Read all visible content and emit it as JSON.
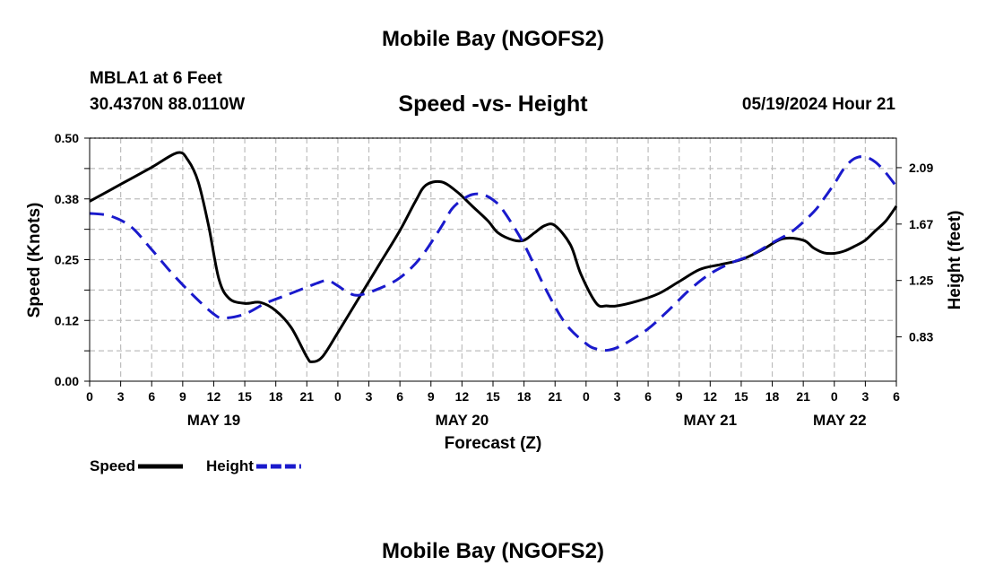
{
  "chart_data": {
    "type": "line",
    "title": "Mobile Bay (NGOFS2)",
    "station": "MBLA1 at 6 Feet",
    "location": "30.4370N  88.0110W",
    "subtitle": "Speed -vs- Height",
    "timestamp": "05/19/2024 Hour 21",
    "xlabel": "Forecast (Z)",
    "ylabel_left": "Speed (Knots)",
    "ylabel_right": "Height (feet)",
    "xlim": [
      0,
      78
    ],
    "ylim_left": [
      0,
      0.5
    ],
    "ylim_right": [
      0.5,
      2.31
    ],
    "x_tick_labels": [
      "0",
      "3",
      "6",
      "9",
      "12",
      "15",
      "18",
      "21",
      "0",
      "3",
      "6",
      "9",
      "12",
      "15",
      "18",
      "21",
      "0",
      "3",
      "6",
      "9",
      "12",
      "15",
      "18",
      "21",
      "0",
      "3",
      "6"
    ],
    "y_ticks_left": [
      "0.00",
      "0.12",
      "0.25",
      "0.38",
      "0.50"
    ],
    "y_ticks_right": [
      "0.83",
      "1.25",
      "1.67",
      "2.09"
    ],
    "date_labels": [
      {
        "label": "MAY 19",
        "x": 12
      },
      {
        "label": "MAY 20",
        "x": 36
      },
      {
        "label": "MAY 21",
        "x": 60
      },
      {
        "label": "MAY 22",
        "x": 72
      }
    ],
    "grid": true,
    "legend_position": "bottom-left",
    "series": [
      {
        "name": "Speed",
        "axis": "left",
        "color": "#000000",
        "style": "solid",
        "x": [
          0,
          3,
          6,
          8.5,
          9.5,
          10.5,
          11.5,
          12.5,
          13.5,
          15,
          16.5,
          18,
          19.5,
          21,
          21.5,
          22.5,
          24,
          26,
          28,
          30,
          31.5,
          32.5,
          34,
          35.5,
          37,
          38.5,
          39.5,
          41,
          42,
          43,
          44,
          45,
          46.5,
          47.5,
          49,
          50,
          51,
          53,
          55,
          57,
          59,
          61,
          63,
          65,
          67,
          69,
          70,
          71,
          72,
          73,
          74,
          75,
          76,
          77,
          78
        ],
        "values": [
          0.37,
          0.405,
          0.44,
          0.47,
          0.455,
          0.41,
          0.32,
          0.21,
          0.17,
          0.16,
          0.162,
          0.145,
          0.11,
          0.05,
          0.04,
          0.05,
          0.1,
          0.17,
          0.24,
          0.31,
          0.37,
          0.403,
          0.41,
          0.39,
          0.36,
          0.33,
          0.305,
          0.29,
          0.29,
          0.305,
          0.32,
          0.32,
          0.28,
          0.22,
          0.16,
          0.155,
          0.155,
          0.165,
          0.18,
          0.205,
          0.23,
          0.24,
          0.25,
          0.27,
          0.293,
          0.29,
          0.274,
          0.264,
          0.263,
          0.268,
          0.278,
          0.29,
          0.31,
          0.33,
          0.36
        ]
      },
      {
        "name": "Height",
        "axis": "right",
        "color": "#1a1acc",
        "style": "dashed",
        "x": [
          0,
          2,
          4,
          6,
          8,
          10,
          12,
          13,
          15,
          17,
          19,
          21,
          22,
          23,
          24,
          25,
          26,
          28,
          30,
          32,
          34,
          35,
          36,
          37,
          38,
          39,
          40,
          42,
          44,
          46,
          48,
          49,
          50,
          51,
          52,
          54,
          56,
          58,
          60,
          62,
          64,
          66,
          68,
          70,
          71,
          72,
          73,
          74,
          75,
          76,
          77,
          78
        ],
        "values": [
          1.75,
          1.73,
          1.65,
          1.48,
          1.3,
          1.14,
          1.0,
          0.97,
          1.0,
          1.08,
          1.14,
          1.2,
          1.23,
          1.25,
          1.21,
          1.16,
          1.14,
          1.19,
          1.27,
          1.42,
          1.65,
          1.78,
          1.85,
          1.89,
          1.89,
          1.85,
          1.77,
          1.52,
          1.2,
          0.93,
          0.78,
          0.74,
          0.73,
          0.75,
          0.79,
          0.89,
          1.03,
          1.18,
          1.3,
          1.38,
          1.44,
          1.53,
          1.62,
          1.76,
          1.86,
          1.97,
          2.09,
          2.16,
          2.17,
          2.13,
          2.05,
          1.95
        ]
      }
    ]
  }
}
